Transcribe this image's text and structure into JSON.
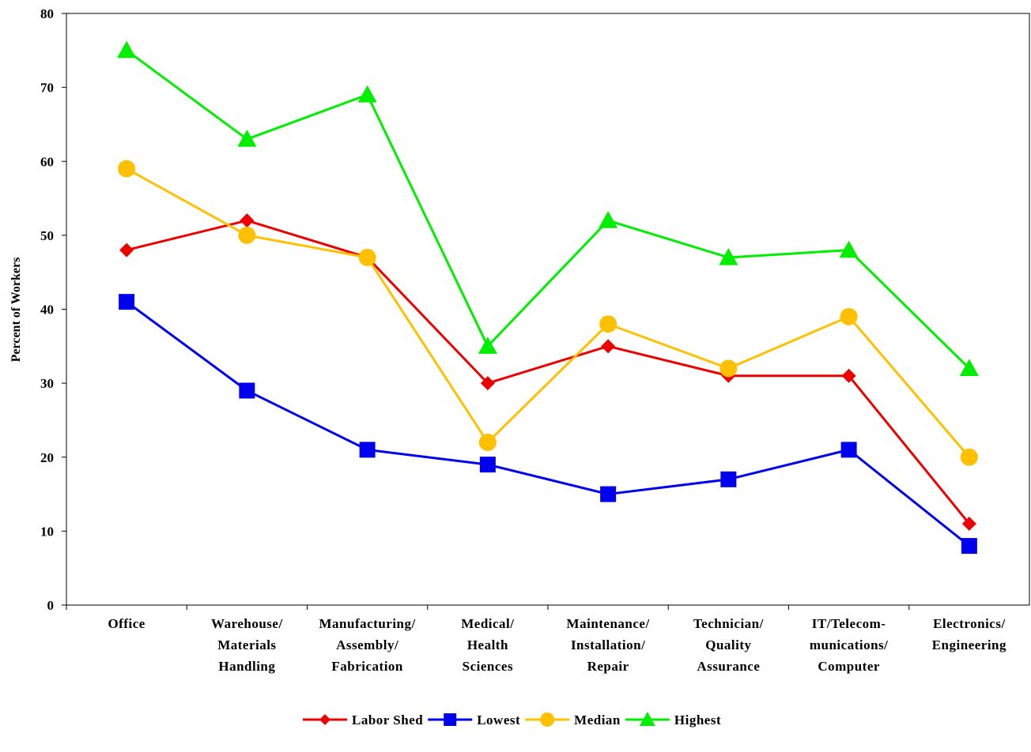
{
  "chart_data": {
    "type": "line",
    "title": "",
    "xlabel": "",
    "ylabel": "Percent of Workers",
    "ylim": [
      0,
      80
    ],
    "yticks": [
      0,
      10,
      20,
      30,
      40,
      50,
      60,
      70,
      80
    ],
    "grid": false,
    "legend_position": "bottom",
    "categories": [
      [
        "Office"
      ],
      [
        "Warehouse/",
        "Materials",
        "Handling"
      ],
      [
        "Manufacturing/",
        "Assembly/",
        "Fabrication"
      ],
      [
        "Medical/",
        "Health",
        "Sciences"
      ],
      [
        "Maintenance/",
        "Installation/",
        "Repair"
      ],
      [
        "Technician/",
        "Quality",
        "Assurance"
      ],
      [
        "IT/Telecom-",
        "munications/",
        "Computer"
      ],
      [
        "Electronics/",
        "Engineering"
      ]
    ],
    "series": [
      {
        "name": "Labor Shed",
        "color": "#ee0000",
        "marker": "diamond",
        "values": [
          48,
          52,
          47,
          30,
          35,
          31,
          31,
          11
        ]
      },
      {
        "name": "Lowest",
        "color": "#0000ee",
        "marker": "square",
        "values": [
          41,
          29,
          21,
          19,
          15,
          17,
          21,
          8
        ]
      },
      {
        "name": "Median",
        "color": "#ffc000",
        "marker": "circle",
        "values": [
          59,
          50,
          47,
          22,
          38,
          32,
          39,
          20
        ]
      },
      {
        "name": "Highest",
        "color": "#00ee00",
        "marker": "triangle",
        "values": [
          75,
          63,
          69,
          35,
          52,
          47,
          48,
          32
        ]
      }
    ]
  }
}
